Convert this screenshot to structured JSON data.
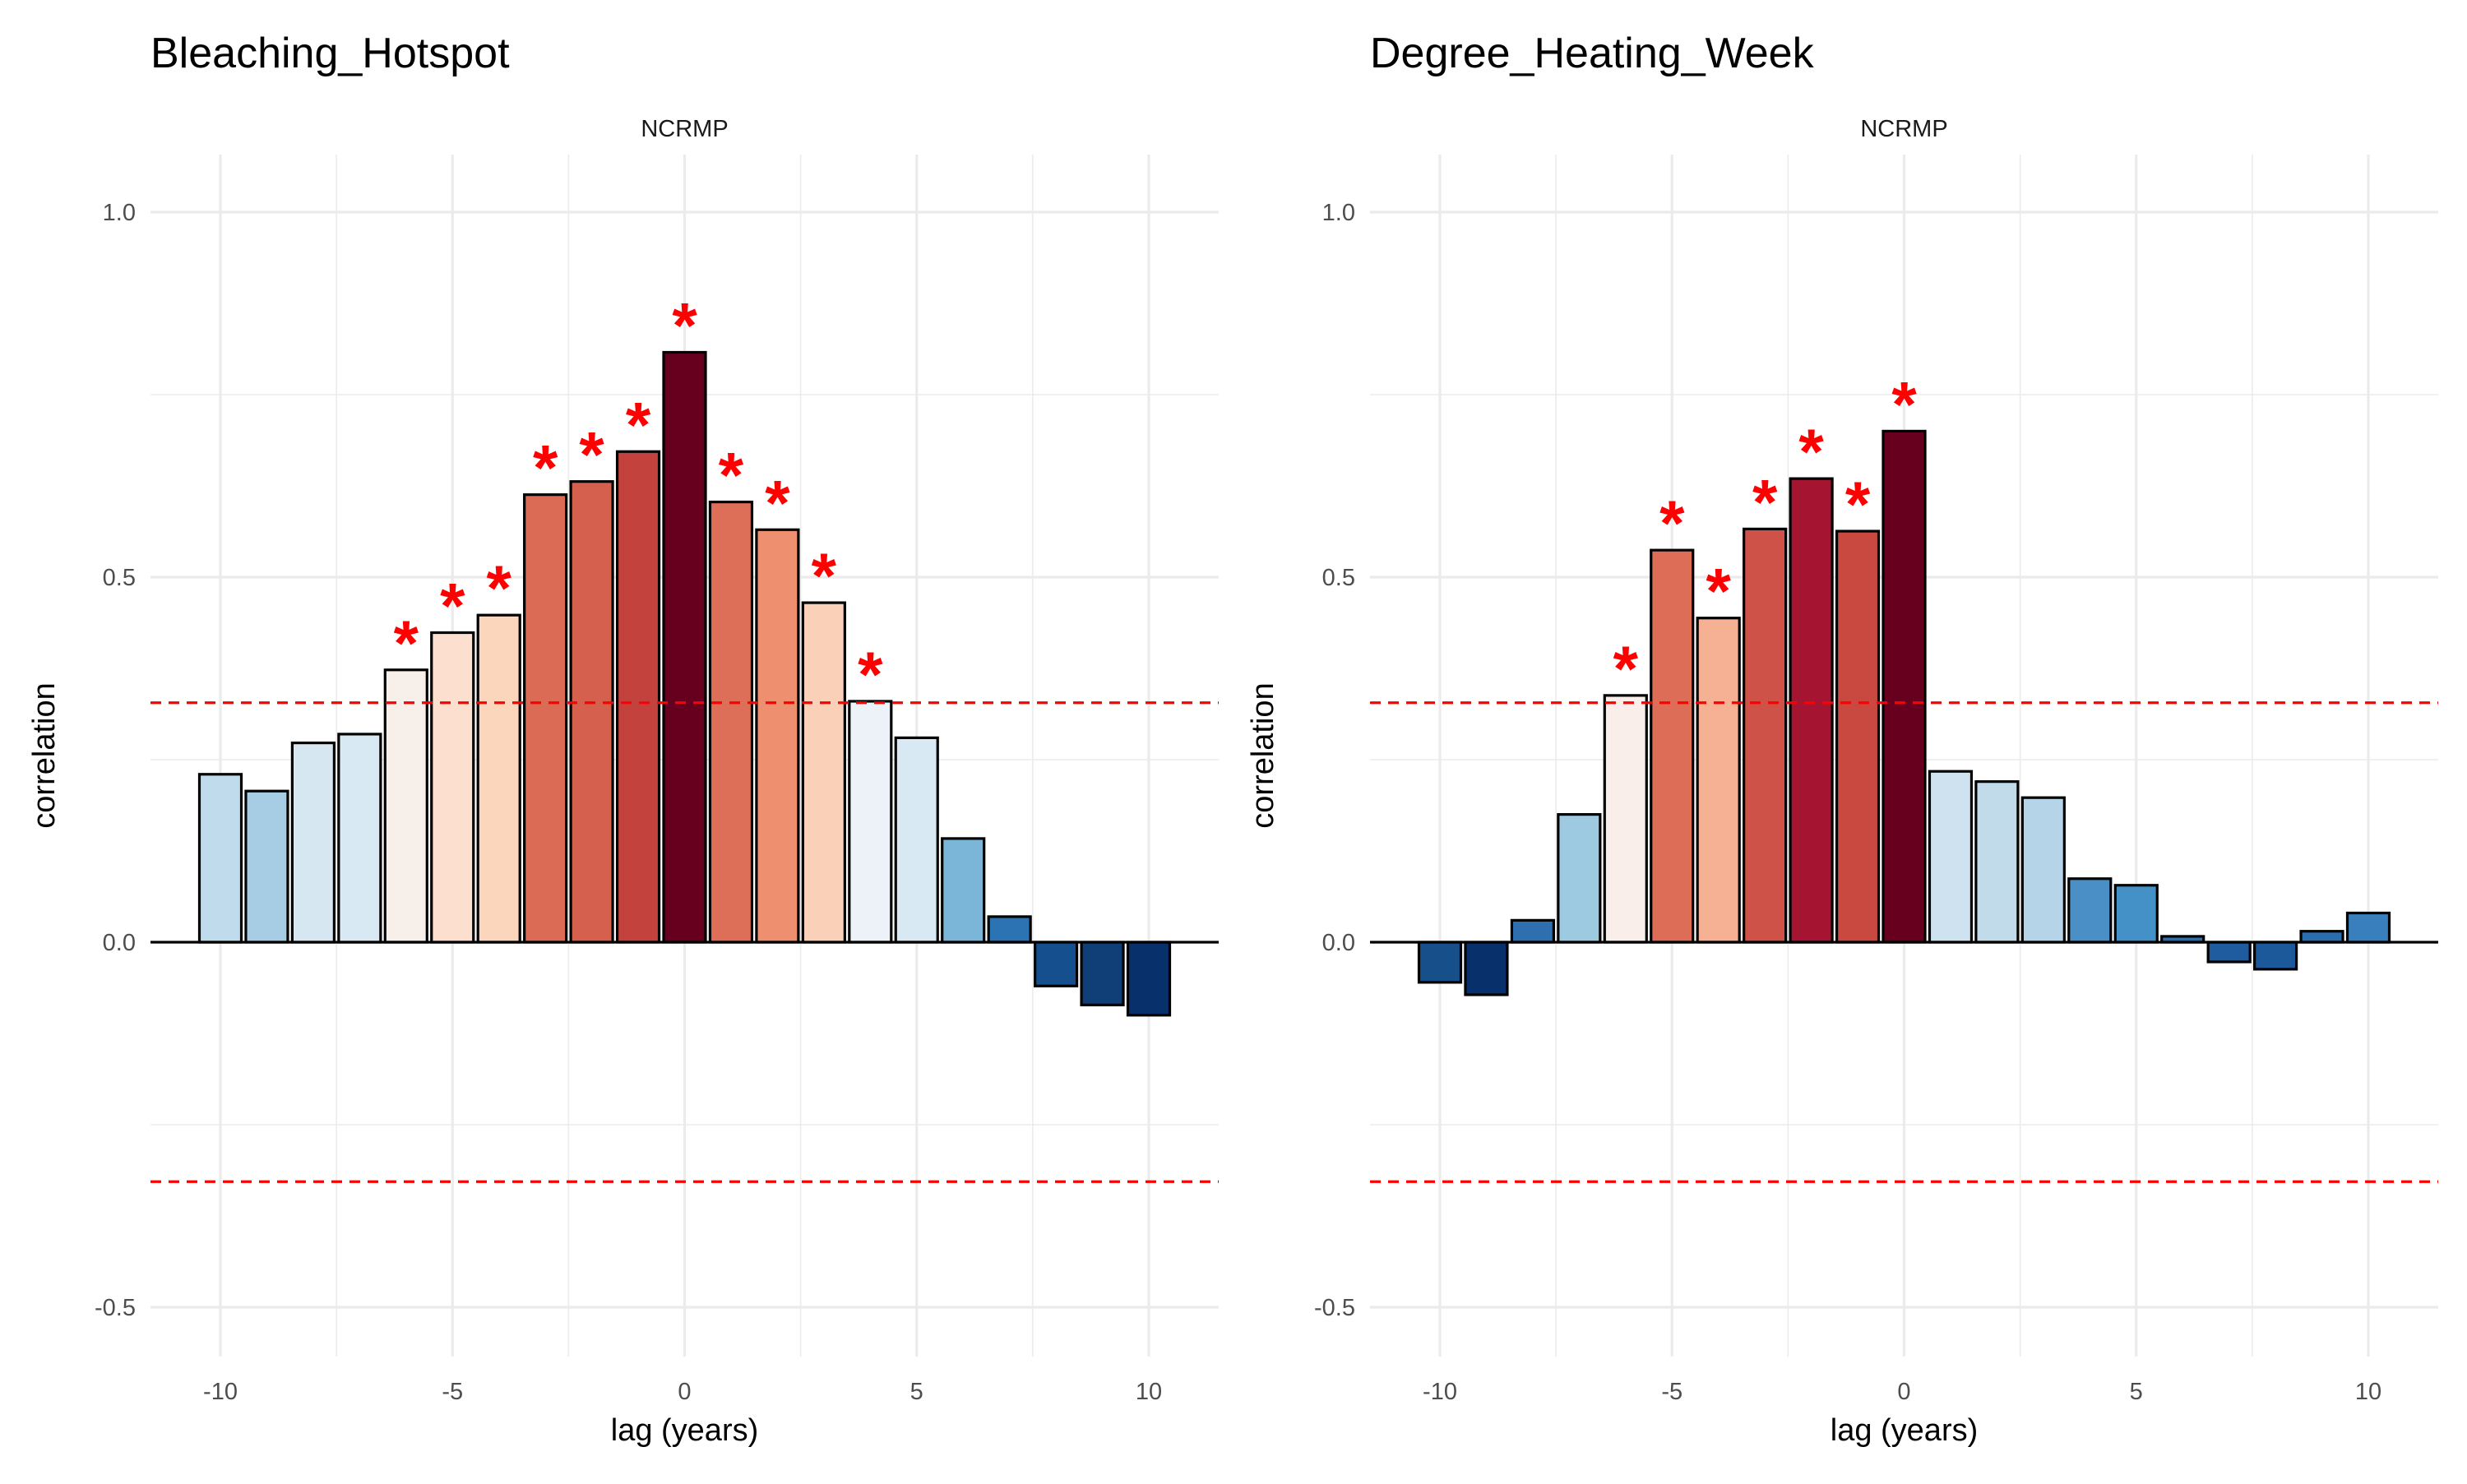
{
  "chart_data": [
    {
      "type": "bar",
      "title": "Bleaching_Hotspot",
      "facet_label": "NCRMP",
      "xlabel": "lag (years)",
      "ylabel": "correlation",
      "xlim": [
        -11.5,
        11.5
      ],
      "ylim": [
        -0.57,
        1.08
      ],
      "x_ticks": [
        -10,
        -5,
        0,
        5,
        10
      ],
      "y_ticks": [
        -0.5,
        0.0,
        0.5,
        1.0
      ],
      "x_tick_labels": [
        "-10",
        "-5",
        "0",
        "5",
        "10"
      ],
      "y_tick_labels": [
        "-0.5",
        "0.0",
        "0.5",
        "1.0"
      ],
      "significance_threshold": 0.328,
      "significance_marker": "*",
      "grid": true,
      "colors": {
        "threshold_line": "#ff0000",
        "marker": "#ff0000",
        "zero_line": "#000000",
        "bar_outline": "#000000",
        "grid": "#ebebeb"
      },
      "bars": [
        {
          "lag": -10,
          "value": 0.23,
          "color": "#c0dcec",
          "significant": false
        },
        {
          "lag": -9,
          "value": 0.207,
          "color": "#a6cde3",
          "significant": false
        },
        {
          "lag": -8,
          "value": 0.273,
          "color": "#d6e7f2",
          "significant": false
        },
        {
          "lag": -7,
          "value": 0.285,
          "color": "#d9e9f3",
          "significant": false
        },
        {
          "lag": -6,
          "value": 0.373,
          "color": "#f7f0ea",
          "significant": true
        },
        {
          "lag": -5,
          "value": 0.424,
          "color": "#fddfcf",
          "significant": true
        },
        {
          "lag": -4,
          "value": 0.448,
          "color": "#fcd5bd",
          "significant": true
        },
        {
          "lag": -3,
          "value": 0.613,
          "color": "#db6b55",
          "significant": true
        },
        {
          "lag": -2,
          "value": 0.631,
          "color": "#d4604d",
          "significant": true
        },
        {
          "lag": -1,
          "value": 0.672,
          "color": "#c3423d",
          "significant": true
        },
        {
          "lag": 0,
          "value": 0.808,
          "color": "#67001f",
          "significant": true
        },
        {
          "lag": 1,
          "value": 0.603,
          "color": "#dd6e57",
          "significant": true
        },
        {
          "lag": 2,
          "value": 0.565,
          "color": "#ee8f70",
          "significant": true
        },
        {
          "lag": 3,
          "value": 0.465,
          "color": "#fad0b9",
          "significant": true
        },
        {
          "lag": 4,
          "value": 0.33,
          "color": "#ecf2f7",
          "significant": true
        },
        {
          "lag": 5,
          "value": 0.28,
          "color": "#d9e9f3",
          "significant": false
        },
        {
          "lag": 6,
          "value": 0.142,
          "color": "#7bb6d8",
          "significant": false
        },
        {
          "lag": 7,
          "value": 0.035,
          "color": "#2c73b4",
          "significant": false
        },
        {
          "lag": 8,
          "value": -0.06,
          "color": "#154f8d",
          "significant": false
        },
        {
          "lag": 9,
          "value": -0.086,
          "color": "#0f3f76",
          "significant": false
        },
        {
          "lag": 10,
          "value": -0.1,
          "color": "#08306b",
          "significant": false
        }
      ]
    },
    {
      "type": "bar",
      "title": "Degree_Heating_Week",
      "facet_label": "NCRMP",
      "xlabel": "lag (years)",
      "ylabel": "correlation",
      "xlim": [
        -11.5,
        11.5
      ],
      "ylim": [
        -0.57,
        1.08
      ],
      "x_ticks": [
        -10,
        -5,
        0,
        5,
        10
      ],
      "y_ticks": [
        -0.5,
        0.0,
        0.5,
        1.0
      ],
      "x_tick_labels": [
        "-10",
        "-5",
        "0",
        "5",
        "10"
      ],
      "y_tick_labels": [
        "-0.5",
        "0.0",
        "0.5",
        "1.0"
      ],
      "significance_threshold": 0.328,
      "significance_marker": "*",
      "grid": true,
      "colors": {
        "threshold_line": "#ff0000",
        "marker": "#ff0000",
        "zero_line": "#000000",
        "bar_outline": "#000000",
        "grid": "#ebebeb"
      },
      "bars": [
        {
          "lag": -10,
          "value": -0.055,
          "color": "#174f8a",
          "significant": false
        },
        {
          "lag": -9,
          "value": -0.072,
          "color": "#08306b",
          "significant": false
        },
        {
          "lag": -8,
          "value": 0.03,
          "color": "#2e6faf",
          "significant": false
        },
        {
          "lag": -7,
          "value": 0.175,
          "color": "#9ecae1",
          "significant": false
        },
        {
          "lag": -6,
          "value": 0.338,
          "color": "#f9eee9",
          "significant": true
        },
        {
          "lag": -5,
          "value": 0.537,
          "color": "#de6d58",
          "significant": true
        },
        {
          "lag": -4,
          "value": 0.444,
          "color": "#f6b093",
          "significant": true
        },
        {
          "lag": -3,
          "value": 0.566,
          "color": "#cf5248",
          "significant": true
        },
        {
          "lag": -2,
          "value": 0.635,
          "color": "#a51430",
          "significant": true
        },
        {
          "lag": -1,
          "value": 0.563,
          "color": "#c9483f",
          "significant": true
        },
        {
          "lag": 0,
          "value": 0.7,
          "color": "#67001f",
          "significant": true
        },
        {
          "lag": 1,
          "value": 0.234,
          "color": "#cfe2f0",
          "significant": false
        },
        {
          "lag": 2,
          "value": 0.22,
          "color": "#c2dbeb",
          "significant": false
        },
        {
          "lag": 3,
          "value": 0.198,
          "color": "#b6d4e7",
          "significant": false
        },
        {
          "lag": 4,
          "value": 0.087,
          "color": "#4a8fc5",
          "significant": false
        },
        {
          "lag": 5,
          "value": 0.078,
          "color": "#4391c6",
          "significant": false
        },
        {
          "lag": 6,
          "value": 0.008,
          "color": "#2a6fae",
          "significant": false
        },
        {
          "lag": 7,
          "value": -0.027,
          "color": "#1f5c9f",
          "significant": false
        },
        {
          "lag": 8,
          "value": -0.037,
          "color": "#1c599b",
          "significant": false
        },
        {
          "lag": 9,
          "value": 0.015,
          "color": "#2b6eae",
          "significant": false
        },
        {
          "lag": 10,
          "value": 0.04,
          "color": "#3a7fbd",
          "significant": false
        }
      ]
    }
  ]
}
